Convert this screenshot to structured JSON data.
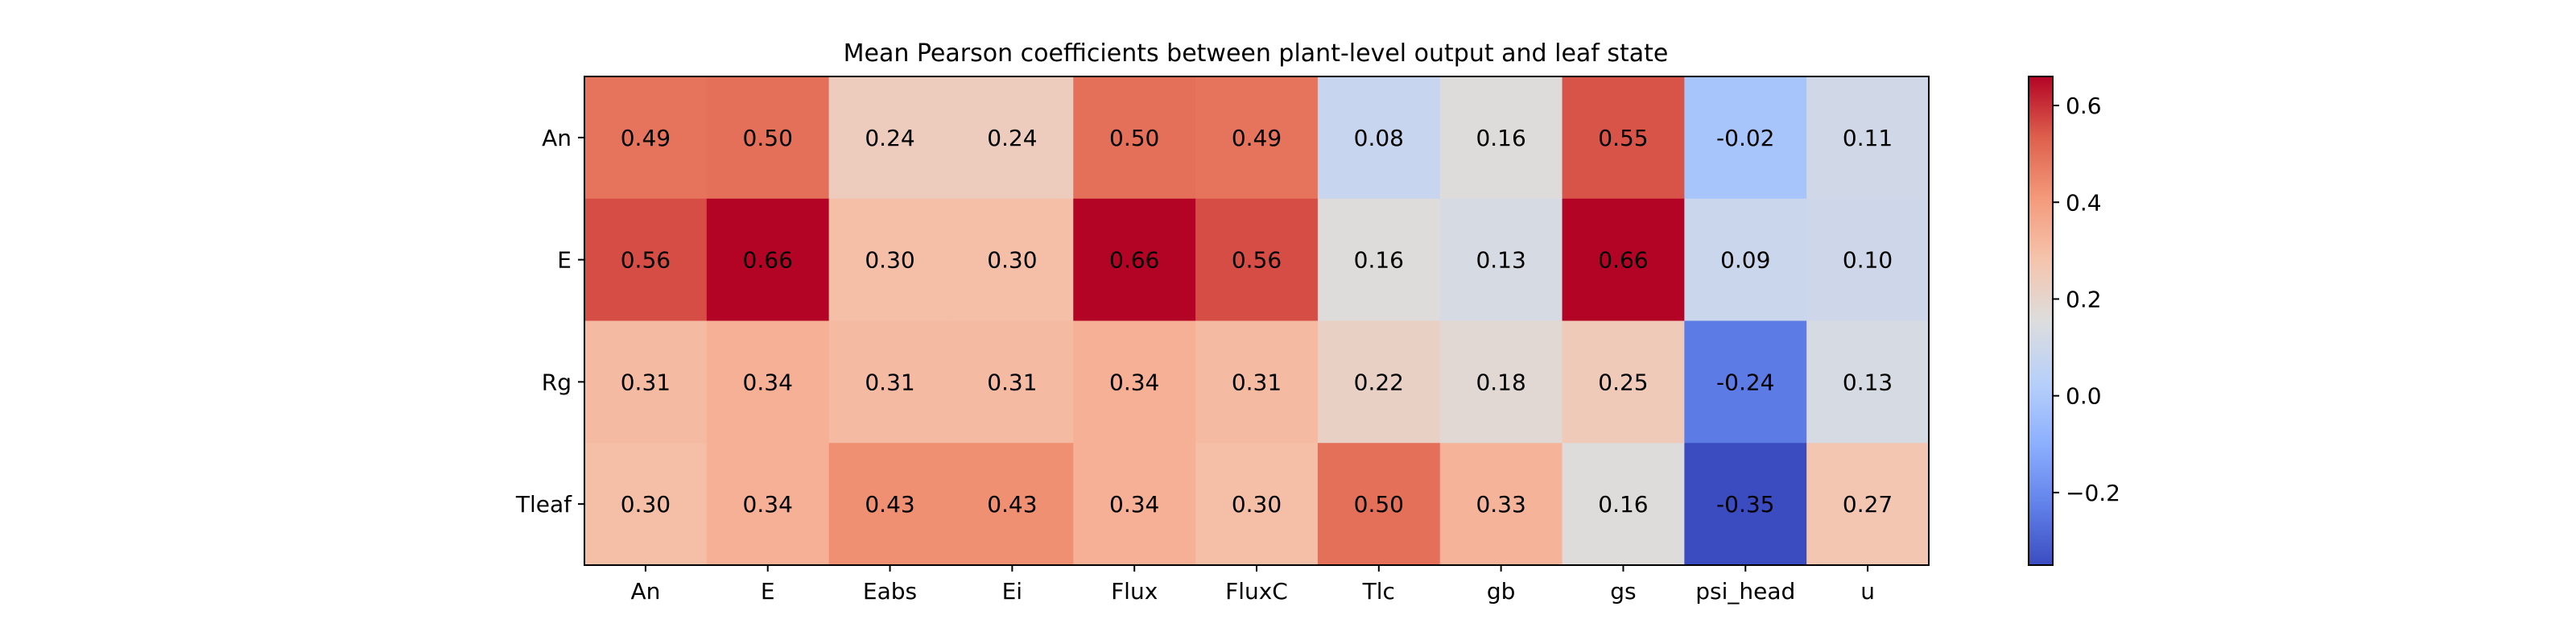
{
  "chart_data": {
    "type": "heatmap",
    "title": "Mean Pearson coefficients between plant-level output and leaf state",
    "xlabel": "",
    "ylabel": "",
    "x_categories": [
      "An",
      "E",
      "Eabs",
      "Ei",
      "Flux",
      "FluxC",
      "Tlc",
      "gb",
      "gs",
      "psi_head",
      "u"
    ],
    "y_categories": [
      "An",
      "E",
      "Rg",
      "Tleaf"
    ],
    "values": [
      [
        0.49,
        0.5,
        0.24,
        0.24,
        0.5,
        0.49,
        0.08,
        0.16,
        0.55,
        -0.02,
        0.11
      ],
      [
        0.56,
        0.66,
        0.3,
        0.3,
        0.66,
        0.56,
        0.16,
        0.13,
        0.66,
        0.09,
        0.1
      ],
      [
        0.31,
        0.34,
        0.31,
        0.31,
        0.34,
        0.31,
        0.22,
        0.18,
        0.25,
        -0.24,
        0.13
      ],
      [
        0.3,
        0.34,
        0.43,
        0.43,
        0.34,
        0.3,
        0.5,
        0.33,
        0.16,
        -0.35,
        0.27
      ]
    ],
    "value_labels": [
      [
        "0.49",
        "0.50",
        "0.24",
        "0.24",
        "0.50",
        "0.49",
        "0.08",
        "0.16",
        "0.55",
        "-0.02",
        "0.11"
      ],
      [
        "0.56",
        "0.66",
        "0.30",
        "0.30",
        "0.66",
        "0.56",
        "0.16",
        "0.13",
        "0.66",
        "0.09",
        "0.10"
      ],
      [
        "0.31",
        "0.34",
        "0.31",
        "0.31",
        "0.34",
        "0.31",
        "0.22",
        "0.18",
        "0.25",
        "-0.24",
        "0.13"
      ],
      [
        "0.30",
        "0.34",
        "0.43",
        "0.43",
        "0.34",
        "0.30",
        "0.50",
        "0.33",
        "0.16",
        "-0.35",
        "0.27"
      ]
    ],
    "colormap": "coolwarm",
    "vmin": -0.35,
    "vmax": 0.66,
    "colorbar": {
      "ticks": [
        -0.2,
        0.0,
        0.2,
        0.4,
        0.6
      ],
      "tick_labels": [
        "−0.2",
        "0.0",
        "0.2",
        "0.4",
        "0.6"
      ]
    },
    "grid": false,
    "legend": "colorbar-right"
  }
}
